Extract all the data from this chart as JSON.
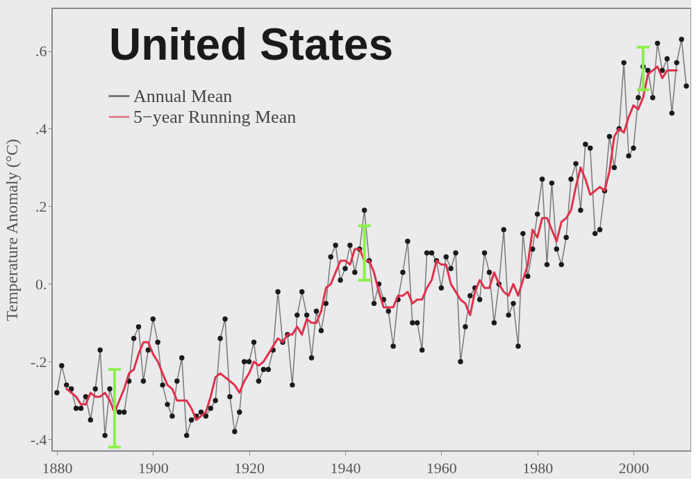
{
  "chart_data": {
    "type": "line",
    "title": "United States",
    "ylabel": "Temperature Anomaly (°C)",
    "x": [
      1880,
      1881,
      1882,
      1883,
      1884,
      1885,
      1886,
      1887,
      1888,
      1889,
      1890,
      1891,
      1892,
      1893,
      1894,
      1895,
      1896,
      1897,
      1898,
      1899,
      1900,
      1901,
      1902,
      1903,
      1904,
      1905,
      1906,
      1907,
      1908,
      1909,
      1910,
      1911,
      1912,
      1913,
      1914,
      1915,
      1916,
      1917,
      1918,
      1919,
      1920,
      1921,
      1922,
      1923,
      1924,
      1925,
      1926,
      1927,
      1928,
      1929,
      1930,
      1931,
      1932,
      1933,
      1934,
      1935,
      1936,
      1937,
      1938,
      1939,
      1940,
      1941,
      1942,
      1943,
      1944,
      1945,
      1946,
      1947,
      1948,
      1949,
      1950,
      1951,
      1952,
      1953,
      1954,
      1955,
      1956,
      1957,
      1958,
      1959,
      1960,
      1961,
      1962,
      1963,
      1964,
      1965,
      1966,
      1967,
      1968,
      1969,
      1970,
      1971,
      1972,
      1973,
      1974,
      1975,
      1976,
      1977,
      1978,
      1979,
      1980,
      1981,
      1982,
      1983,
      1984,
      1985,
      1986,
      1987,
      1988,
      1989,
      1990,
      1991,
      1992,
      1993,
      1994,
      1995,
      1996,
      1997,
      1998,
      1999,
      2000,
      2001,
      2002,
      2003,
      2004,
      2005,
      2006,
      2007,
      2008,
      2009,
      2010,
      2011
    ],
    "series": [
      {
        "name": "Annual Mean",
        "color": "#1a1a1a",
        "marker": "circle",
        "values": [
          -0.28,
          -0.21,
          -0.26,
          -0.27,
          -0.32,
          -0.32,
          -0.29,
          -0.35,
          -0.27,
          -0.17,
          -0.39,
          -0.27,
          -0.32,
          -0.33,
          -0.33,
          -0.25,
          -0.14,
          -0.11,
          -0.25,
          -0.17,
          -0.09,
          -0.15,
          -0.26,
          -0.31,
          -0.34,
          -0.25,
          -0.19,
          -0.39,
          -0.35,
          -0.34,
          -0.33,
          -0.34,
          -0.32,
          -0.3,
          -0.14,
          -0.09,
          -0.29,
          -0.38,
          -0.33,
          -0.2,
          -0.2,
          -0.15,
          -0.25,
          -0.22,
          -0.22,
          -0.17,
          -0.02,
          -0.15,
          -0.13,
          -0.26,
          -0.08,
          -0.02,
          -0.08,
          -0.19,
          -0.07,
          -0.12,
          -0.05,
          0.07,
          0.1,
          0.01,
          0.04,
          0.1,
          0.03,
          0.09,
          0.19,
          0.06,
          -0.05,
          0.0,
          -0.04,
          -0.07,
          -0.16,
          -0.04,
          0.03,
          0.11,
          -0.1,
          -0.1,
          -0.17,
          0.08,
          0.08,
          0.06,
          -0.01,
          0.07,
          0.04,
          0.08,
          -0.2,
          -0.11,
          -0.03,
          -0.01,
          -0.04,
          0.08,
          0.03,
          -0.1,
          0.0,
          0.14,
          -0.08,
          -0.05,
          -0.16,
          0.13,
          0.02,
          0.09,
          0.18,
          0.27,
          0.05,
          0.26,
          0.09,
          0.05,
          0.12,
          0.27,
          0.31,
          0.19,
          0.36,
          0.35,
          0.13,
          0.14,
          0.24,
          0.38,
          0.3,
          0.4,
          0.57,
          0.33,
          0.35,
          0.48,
          0.56,
          0.55,
          0.48,
          0.62,
          0.55,
          0.58,
          0.44,
          0.57,
          0.63,
          0.51
        ]
      },
      {
        "name": "5−year Running Mean",
        "color": "#e0304a",
        "marker": "none",
        "x": [
          1882,
          1883,
          1884,
          1885,
          1886,
          1887,
          1888,
          1889,
          1890,
          1891,
          1892,
          1893,
          1894,
          1895,
          1896,
          1897,
          1898,
          1899,
          1900,
          1901,
          1902,
          1903,
          1904,
          1905,
          1906,
          1907,
          1908,
          1909,
          1910,
          1911,
          1912,
          1913,
          1914,
          1915,
          1916,
          1917,
          1918,
          1919,
          1920,
          1921,
          1922,
          1923,
          1924,
          1925,
          1926,
          1927,
          1928,
          1929,
          1930,
          1931,
          1932,
          1933,
          1934,
          1935,
          1936,
          1937,
          1938,
          1939,
          1940,
          1941,
          1942,
          1943,
          1944,
          1945,
          1946,
          1947,
          1948,
          1949,
          1950,
          1951,
          1952,
          1953,
          1954,
          1955,
          1956,
          1957,
          1958,
          1959,
          1960,
          1961,
          1962,
          1963,
          1964,
          1965,
          1966,
          1967,
          1968,
          1969,
          1970,
          1971,
          1972,
          1973,
          1974,
          1975,
          1976,
          1977,
          1978,
          1979,
          1980,
          1981,
          1982,
          1983,
          1984,
          1985,
          1986,
          1987,
          1988,
          1989,
          1990,
          1991,
          1992,
          1993,
          1994,
          1995,
          1996,
          1997,
          1998,
          1999,
          2000,
          2001,
          2002,
          2003,
          2004,
          2005,
          2006,
          2007,
          2008,
          2009
        ],
        "values": [
          -0.27,
          -0.28,
          -0.29,
          -0.31,
          -0.31,
          -0.28,
          -0.29,
          -0.29,
          -0.28,
          -0.3,
          -0.33,
          -0.3,
          -0.27,
          -0.23,
          -0.22,
          -0.18,
          -0.15,
          -0.15,
          -0.18,
          -0.2,
          -0.23,
          -0.26,
          -0.27,
          -0.3,
          -0.3,
          -0.3,
          -0.32,
          -0.35,
          -0.34,
          -0.33,
          -0.29,
          -0.24,
          -0.23,
          -0.24,
          -0.25,
          -0.26,
          -0.28,
          -0.25,
          -0.23,
          -0.2,
          -0.21,
          -0.2,
          -0.18,
          -0.16,
          -0.14,
          -0.15,
          -0.13,
          -0.13,
          -0.11,
          -0.13,
          -0.09,
          -0.1,
          -0.1,
          -0.07,
          -0.01,
          0.0,
          0.03,
          0.06,
          0.06,
          0.05,
          0.09,
          0.09,
          0.06,
          0.06,
          0.03,
          -0.02,
          -0.06,
          -0.06,
          -0.06,
          -0.03,
          -0.03,
          -0.02,
          -0.05,
          -0.04,
          -0.04,
          -0.01,
          0.01,
          0.06,
          0.05,
          0.05,
          0.0,
          -0.02,
          -0.04,
          -0.05,
          -0.08,
          -0.02,
          0.01,
          -0.01,
          -0.01,
          0.03,
          0.0,
          -0.02,
          -0.03,
          0.0,
          -0.03,
          0.01,
          0.05,
          0.14,
          0.12,
          0.17,
          0.17,
          0.14,
          0.11,
          0.16,
          0.17,
          0.19,
          0.25,
          0.3,
          0.27,
          0.23,
          0.24,
          0.25,
          0.24,
          0.29,
          0.38,
          0.4,
          0.39,
          0.43,
          0.46,
          0.45,
          0.48,
          0.54,
          0.55,
          0.56,
          0.53,
          0.55,
          0.55,
          0.55
        ],
        "errors": [
          null,
          null,
          null,
          null,
          null,
          null,
          null,
          null,
          null,
          null,
          [
            -0.42,
            -0.22
          ],
          null,
          null,
          null,
          null,
          null,
          null,
          null,
          null,
          null,
          null,
          null,
          null,
          null,
          null,
          null,
          null,
          null,
          null,
          null,
          null,
          null,
          null,
          null,
          null,
          null,
          null,
          null,
          null,
          null,
          null,
          null,
          null,
          null,
          null,
          null,
          null,
          null,
          null,
          null,
          null,
          null,
          null,
          null,
          null,
          null,
          null,
          null,
          null,
          null,
          null,
          null,
          [
            0.01,
            0.15
          ],
          null,
          null,
          null,
          null,
          null,
          null,
          null,
          null,
          null,
          null,
          null,
          null,
          null,
          null,
          null,
          null,
          null,
          null,
          null,
          null,
          null,
          null,
          null,
          null,
          null,
          null,
          null,
          null,
          null,
          null,
          null,
          null,
          null,
          null,
          null,
          null,
          null,
          null,
          null,
          null,
          null,
          null,
          null,
          null,
          null,
          null,
          null,
          null,
          null,
          null,
          null,
          null,
          null,
          null,
          null,
          null,
          null,
          [
            0.5,
            0.61
          ],
          null,
          null,
          null,
          null,
          null,
          null,
          null
        ]
      }
    ],
    "xlim": [
      1879,
      2012
    ],
    "xticks": [
      1880,
      1900,
      1920,
      1940,
      1960,
      1980,
      2000
    ],
    "ylim": [
      -0.43,
      0.71
    ],
    "yticks": [
      {
        "value": -0.4,
        "label": "-.4"
      },
      {
        "value": -0.2,
        "label": "-.2"
      },
      {
        "value": 0,
        "label": "0."
      },
      {
        "value": 0.2,
        "label": ".2"
      },
      {
        "value": 0.4,
        "label": ".4"
      },
      {
        "value": 0.6,
        "label": ".6"
      }
    ],
    "legend": "top left",
    "grid": false
  }
}
